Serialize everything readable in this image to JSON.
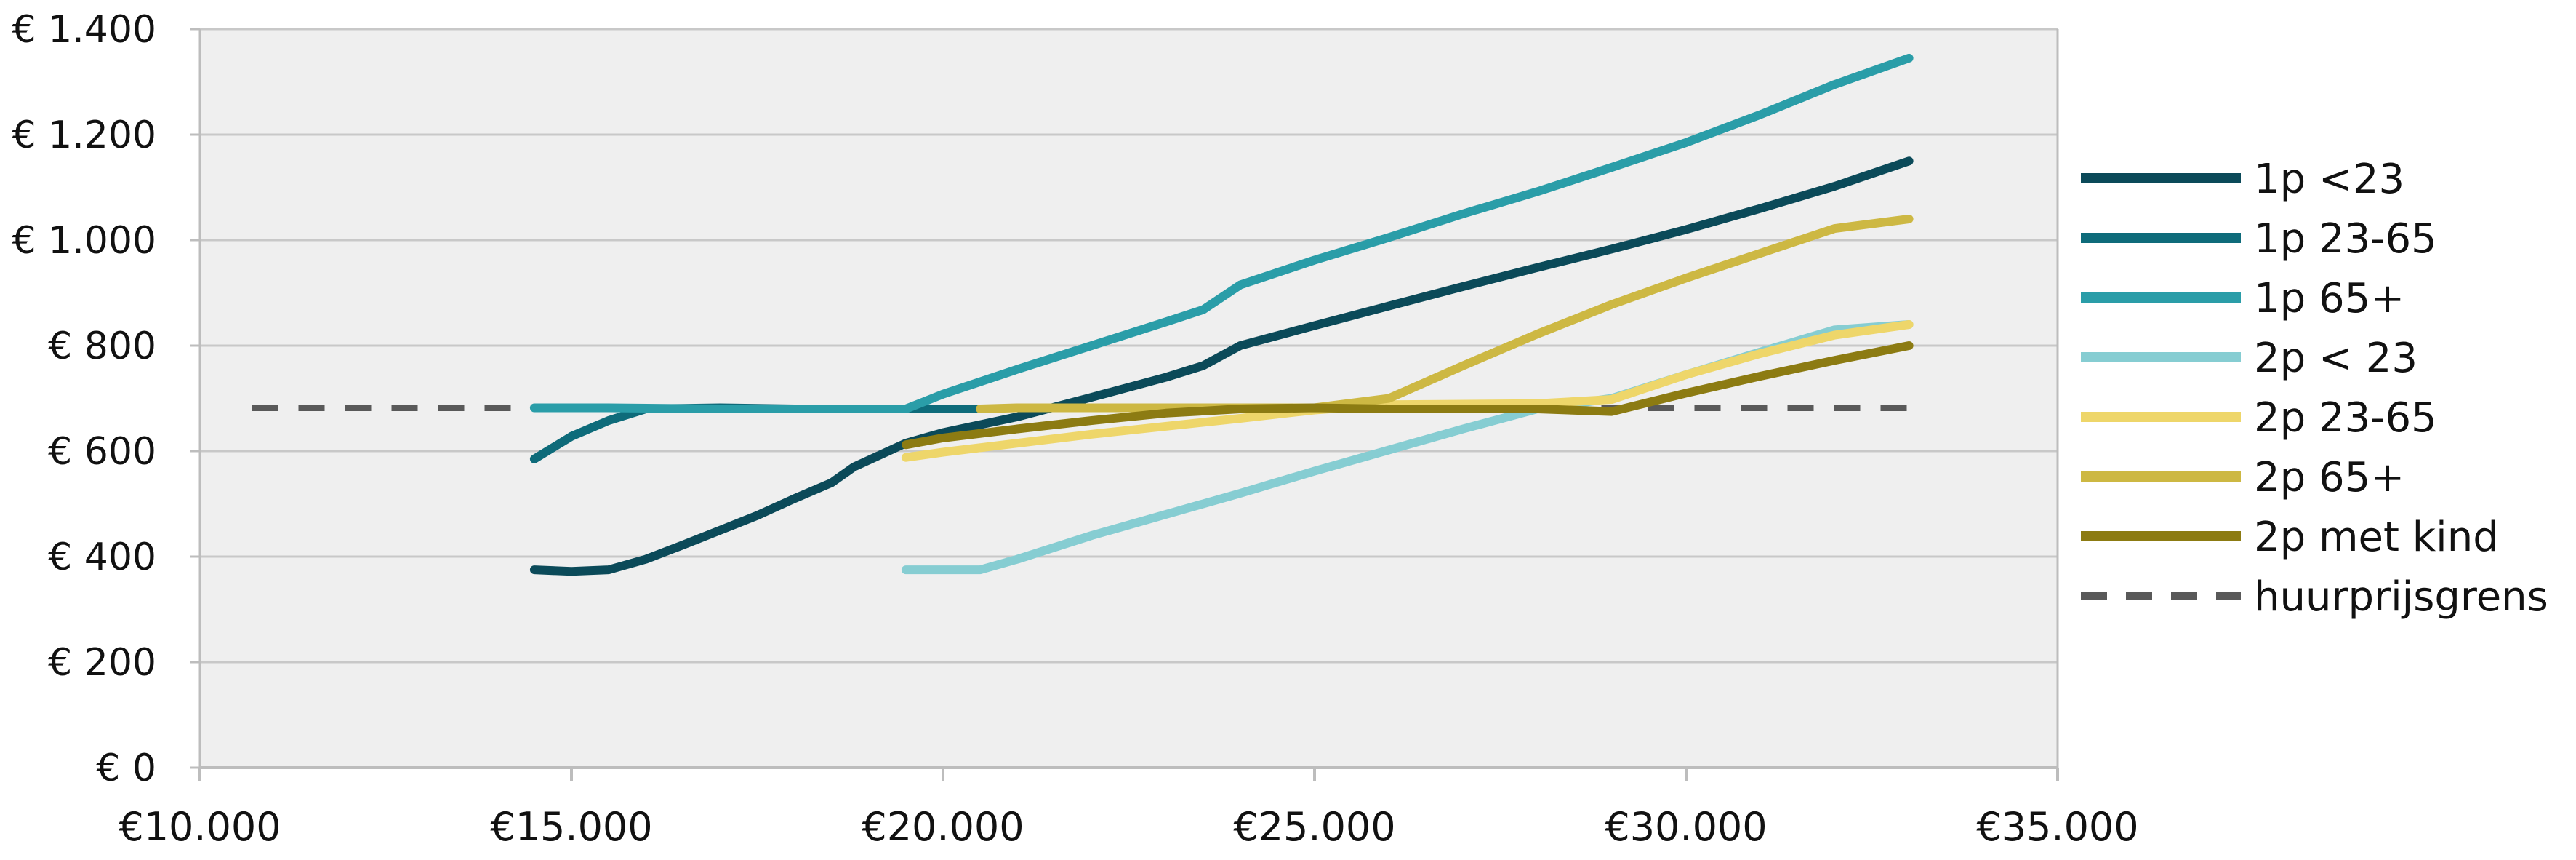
{
  "chart_data": {
    "type": "line",
    "title": "",
    "xlabel": "",
    "ylabel": "",
    "xlim": [
      10000,
      35000
    ],
    "ylim": [
      0,
      1400
    ],
    "x_ticks": [
      {
        "value": 10000,
        "label": "€10.000"
      },
      {
        "value": 15000,
        "label": "€15.000"
      },
      {
        "value": 20000,
        "label": "€20.000"
      },
      {
        "value": 25000,
        "label": "€25.000"
      },
      {
        "value": 30000,
        "label": "€30.000"
      },
      {
        "value": 35000,
        "label": "€35.000"
      }
    ],
    "y_ticks": [
      {
        "value": 0,
        "label": "€ 0"
      },
      {
        "value": 200,
        "label": "€ 200"
      },
      {
        "value": 400,
        "label": "€ 400"
      },
      {
        "value": 600,
        "label": "€ 600"
      },
      {
        "value": 800,
        "label": "€ 800"
      },
      {
        "value": 1000,
        "label": "€ 1.000"
      },
      {
        "value": 1200,
        "label": "€ 1.200"
      },
      {
        "value": 1400,
        "label": "€ 1.400"
      }
    ],
    "grid": "horizontal",
    "legend_position": "right",
    "series": [
      {
        "name": "1p <23",
        "color": "#0b4a59",
        "dash": false,
        "points": [
          [
            14500,
            375
          ],
          [
            15000,
            372
          ],
          [
            15500,
            375
          ],
          [
            16000,
            395
          ],
          [
            16500,
            422
          ],
          [
            17000,
            450
          ],
          [
            17500,
            478
          ],
          [
            18000,
            510
          ],
          [
            18500,
            540
          ],
          [
            18800,
            570
          ],
          [
            19500,
            615
          ],
          [
            20000,
            635
          ],
          [
            21000,
            665
          ],
          [
            22000,
            702
          ],
          [
            23000,
            740
          ],
          [
            23500,
            762
          ],
          [
            24000,
            800
          ],
          [
            25000,
            838
          ],
          [
            26000,
            875
          ],
          [
            27000,
            912
          ],
          [
            28000,
            948
          ],
          [
            29000,
            983
          ],
          [
            30000,
            1020
          ],
          [
            31000,
            1060
          ],
          [
            32000,
            1102
          ],
          [
            33000,
            1150
          ]
        ]
      },
      {
        "name": "1p 23-65",
        "color": "#0e6b7a",
        "dash": false,
        "points": [
          [
            14500,
            585
          ],
          [
            15000,
            628
          ],
          [
            15500,
            658
          ],
          [
            16000,
            680
          ],
          [
            17000,
            682
          ],
          [
            18000,
            680
          ],
          [
            19500,
            680
          ],
          [
            20500,
            680
          ]
        ]
      },
      {
        "name": "1p 65+",
        "color": "#2a9da8",
        "dash": false,
        "points": [
          [
            14500,
            682
          ],
          [
            15500,
            682
          ],
          [
            17000,
            680
          ],
          [
            19500,
            680
          ],
          [
            20000,
            708
          ],
          [
            21000,
            755
          ],
          [
            22000,
            800
          ],
          [
            23000,
            845
          ],
          [
            23500,
            868
          ],
          [
            24000,
            915
          ],
          [
            25000,
            962
          ],
          [
            26000,
            1005
          ],
          [
            27000,
            1050
          ],
          [
            28000,
            1092
          ],
          [
            29000,
            1138
          ],
          [
            30000,
            1185
          ],
          [
            31000,
            1238
          ],
          [
            32000,
            1295
          ],
          [
            33000,
            1345
          ]
        ]
      },
      {
        "name": "2p < 23",
        "color": "#86cdd2",
        "dash": false,
        "points": [
          [
            19500,
            375
          ],
          [
            20500,
            375
          ],
          [
            21000,
            395
          ],
          [
            22000,
            440
          ],
          [
            23000,
            480
          ],
          [
            24000,
            520
          ],
          [
            25000,
            562
          ],
          [
            26000,
            602
          ],
          [
            27000,
            642
          ],
          [
            28000,
            680
          ],
          [
            29000,
            700
          ],
          [
            30000,
            745
          ],
          [
            31000,
            788
          ],
          [
            32000,
            830
          ],
          [
            33000,
            840
          ]
        ]
      },
      {
        "name": "2p 23-65",
        "color": "#eed66a",
        "dash": false,
        "points": [
          [
            19500,
            588
          ],
          [
            20000,
            598
          ],
          [
            22000,
            632
          ],
          [
            24000,
            662
          ],
          [
            25000,
            678
          ],
          [
            26000,
            688
          ],
          [
            28000,
            690
          ],
          [
            29000,
            698
          ],
          [
            30000,
            745
          ],
          [
            31000,
            785
          ],
          [
            32000,
            820
          ],
          [
            33000,
            840
          ]
        ]
      },
      {
        "name": "2p 65+",
        "color": "#cdb843",
        "dash": false,
        "points": [
          [
            20500,
            680
          ],
          [
            21000,
            682
          ],
          [
            22000,
            682
          ],
          [
            24000,
            682
          ],
          [
            25000,
            682
          ],
          [
            26000,
            700
          ],
          [
            27000,
            762
          ],
          [
            28000,
            822
          ],
          [
            29000,
            878
          ],
          [
            30000,
            928
          ],
          [
            31000,
            975
          ],
          [
            32000,
            1022
          ],
          [
            33000,
            1040
          ]
        ]
      },
      {
        "name": "2p met kind",
        "color": "#8c7b12",
        "dash": false,
        "points": [
          [
            19500,
            612
          ],
          [
            20000,
            625
          ],
          [
            21000,
            642
          ],
          [
            22000,
            658
          ],
          [
            23000,
            672
          ],
          [
            24000,
            680
          ],
          [
            25000,
            682
          ],
          [
            26000,
            680
          ],
          [
            28000,
            680
          ],
          [
            29000,
            675
          ],
          [
            30000,
            710
          ],
          [
            31000,
            742
          ],
          [
            32000,
            772
          ],
          [
            33000,
            800
          ]
        ]
      },
      {
        "name": "huurprijsgrens",
        "color": "#595959",
        "dash": true,
        "points": [
          [
            10700,
            682
          ],
          [
            33000,
            682
          ]
        ]
      }
    ]
  }
}
